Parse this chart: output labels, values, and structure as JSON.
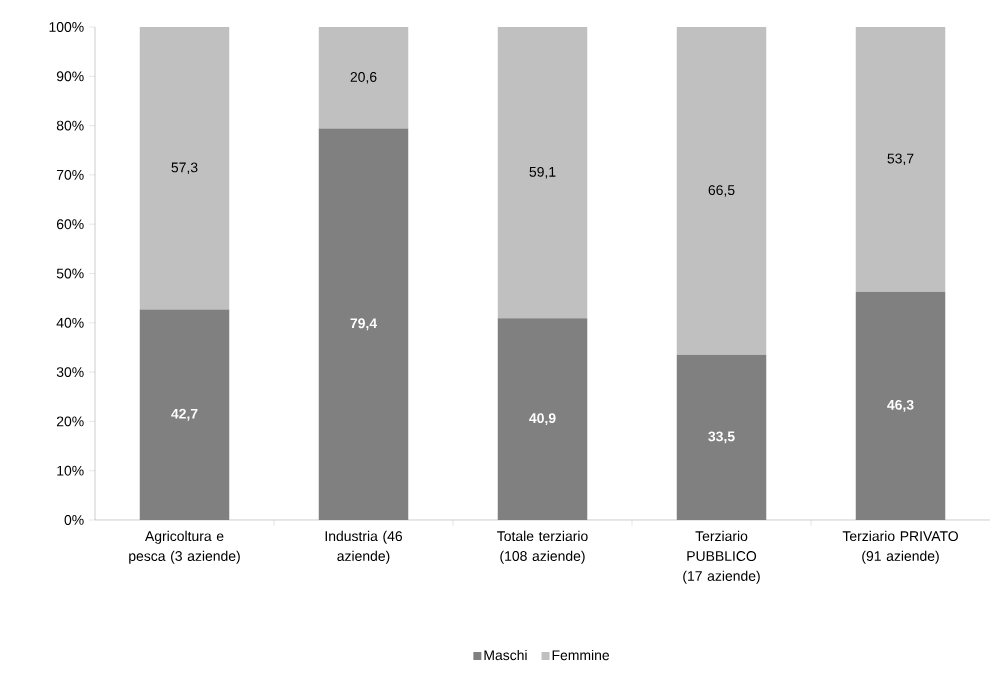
{
  "chart_data": {
    "type": "bar",
    "stacked": true,
    "categories": [
      "Agricoltura e pesca (3 aziende)",
      "Industria (46 aziende)",
      "Totale terziario (108 aziende)",
      "Terziario PUBBLICO (17 aziende)",
      "Terziario PRIVATO (91 aziende)"
    ],
    "series": [
      {
        "name": "Maschi",
        "color": "#808080",
        "values": [
          42.7,
          79.4,
          40.9,
          33.5,
          46.3
        ],
        "value_labels": [
          "42,7",
          "79,4",
          "40,9",
          "33,5",
          "46,3"
        ]
      },
      {
        "name": "Femmine",
        "color": "#c0c0c0",
        "values": [
          57.3,
          20.6,
          59.1,
          66.5,
          53.7
        ],
        "value_labels": [
          "57,3",
          "20,6",
          "59,1",
          "66,5",
          "53,7"
        ]
      }
    ],
    "ylim": [
      0,
      100
    ],
    "yticks": [
      {
        "value": 0,
        "label": "0%"
      },
      {
        "value": 10,
        "label": "10%"
      },
      {
        "value": 20,
        "label": "20%"
      },
      {
        "value": 30,
        "label": "30%"
      },
      {
        "value": 40,
        "label": "40%"
      },
      {
        "value": 50,
        "label": "50%"
      },
      {
        "value": 60,
        "label": "60%"
      },
      {
        "value": 70,
        "label": "70%"
      },
      {
        "value": 80,
        "label": "80%"
      },
      {
        "value": 90,
        "label": "90%"
      },
      {
        "value": 100,
        "label": "100%"
      }
    ],
    "legend": "bottom",
    "grid": false
  }
}
